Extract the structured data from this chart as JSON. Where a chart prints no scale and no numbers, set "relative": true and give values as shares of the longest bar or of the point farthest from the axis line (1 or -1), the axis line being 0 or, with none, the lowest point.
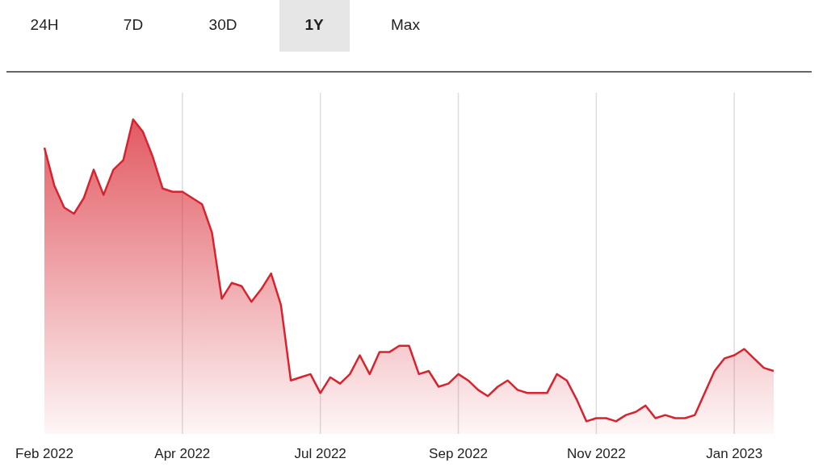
{
  "chart_data": {
    "type": "area",
    "relative": true,
    "annotations": [
      "24H",
      "7D",
      "30D",
      "1Y",
      "Max"
    ],
    "categories": [
      "Feb 2022",
      null,
      null,
      null,
      null,
      null,
      null,
      null,
      null,
      null,
      null,
      null,
      null,
      null,
      "Apr 2022",
      null,
      null,
      null,
      null,
      null,
      null,
      null,
      null,
      null,
      null,
      null,
      null,
      null,
      "Jul 2022",
      null,
      null,
      null,
      null,
      null,
      null,
      null,
      null,
      null,
      null,
      null,
      null,
      null,
      "Sep 2022",
      null,
      null,
      null,
      null,
      null,
      null,
      null,
      null,
      null,
      null,
      null,
      null,
      null,
      "Nov 2022",
      null,
      null,
      null,
      null,
      null,
      null,
      null,
      null,
      null,
      null,
      null,
      null,
      null,
      "Jan 2023",
      null,
      null,
      null,
      null
    ],
    "values": [
      0.91,
      0.79,
      0.72,
      0.7,
      0.75,
      0.84,
      0.76,
      0.84,
      0.87,
      1,
      0.96,
      0.88,
      0.78,
      0.77,
      0.77,
      0.75,
      0.73,
      0.64,
      0.43,
      0.48,
      0.47,
      0.42,
      0.46,
      0.51,
      0.41,
      0.17,
      0.18,
      0.19,
      0.13,
      0.18,
      0.16,
      0.19,
      0.25,
      0.19,
      0.26,
      0.26,
      0.28,
      0.28,
      0.19,
      0.2,
      0.15,
      0.16,
      0.19,
      0.17,
      0.14,
      0.12,
      0.15,
      0.17,
      0.14,
      0.13,
      0.13,
      0.13,
      0.19,
      0.17,
      0.11,
      0.04,
      0.05,
      0.05,
      0.04,
      0.06,
      0.07,
      0.09,
      0.05,
      0.06,
      0.05,
      0.05,
      0.06,
      0.13,
      0.2,
      0.24,
      0.25,
      0.27,
      0.24,
      0.21,
      0.2
    ],
    "color": "#d8232e",
    "grid": "x",
    "tick_labels": "x",
    "marker": "none",
    "line_style": "solid"
  }
}
